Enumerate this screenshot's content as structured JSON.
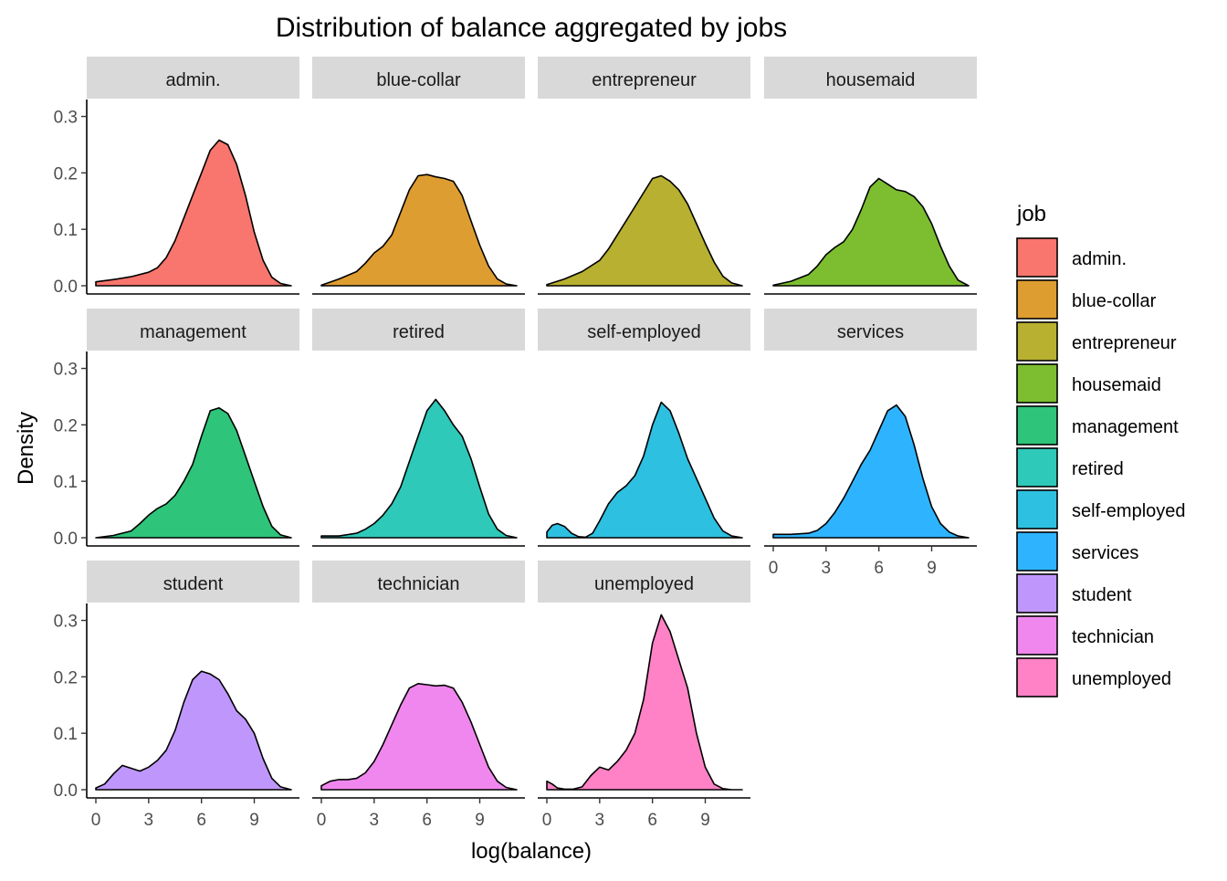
{
  "chart_data": {
    "type": "area",
    "title": "Distribution of balance aggregated by jobs",
    "xlabel": "log(balance)",
    "ylabel": "Density",
    "xlim": [
      0,
      11.1
    ],
    "ylim": [
      0,
      0.33
    ],
    "x_ticks": [
      0,
      3,
      6,
      9
    ],
    "y_ticks": [
      0.0,
      0.1,
      0.2,
      0.3
    ],
    "x_tick_labels": [
      "0",
      "3",
      "6",
      "9"
    ],
    "y_tick_labels": [
      "0.0",
      "0.1",
      "0.2",
      "0.3"
    ],
    "grid": false,
    "legend": {
      "title": "job",
      "position": "right"
    },
    "facets": [
      {
        "name": "admin.",
        "color": "#F8766D",
        "x": [
          0,
          1,
          2,
          3,
          3.5,
          4,
          4.5,
          5,
          5.5,
          6,
          6.5,
          7,
          7.5,
          8,
          8.5,
          9,
          9.5,
          10,
          10.5,
          11.1
        ],
        "y": [
          0.007,
          0.011,
          0.016,
          0.024,
          0.032,
          0.05,
          0.08,
          0.12,
          0.16,
          0.2,
          0.24,
          0.258,
          0.25,
          0.215,
          0.16,
          0.095,
          0.045,
          0.015,
          0.004,
          0.0
        ]
      },
      {
        "name": "blue-collar",
        "color": "#DE9D30",
        "x": [
          0,
          1,
          2,
          2.5,
          3,
          3.5,
          4,
          4.5,
          5,
          5.5,
          6,
          6.5,
          7,
          7.5,
          8,
          8.5,
          9,
          9.5,
          10,
          10.5,
          11.1
        ],
        "y": [
          0.001,
          0.012,
          0.025,
          0.04,
          0.058,
          0.07,
          0.09,
          0.13,
          0.17,
          0.195,
          0.197,
          0.193,
          0.19,
          0.185,
          0.16,
          0.115,
          0.072,
          0.035,
          0.012,
          0.003,
          0.0
        ]
      },
      {
        "name": "entrepreneur",
        "color": "#B7B030",
        "x": [
          0,
          1,
          2,
          3,
          3.5,
          4,
          4.5,
          5,
          5.5,
          6,
          6.5,
          7,
          7.5,
          8,
          8.5,
          9,
          9.5,
          10,
          10.5,
          11.1
        ],
        "y": [
          0.002,
          0.012,
          0.025,
          0.045,
          0.065,
          0.09,
          0.115,
          0.14,
          0.165,
          0.19,
          0.195,
          0.185,
          0.17,
          0.145,
          0.11,
          0.075,
          0.042,
          0.017,
          0.005,
          0.0
        ]
      },
      {
        "name": "housemaid",
        "color": "#7CBE30",
        "x": [
          0,
          1,
          2,
          2.5,
          3,
          3.5,
          4,
          4.5,
          5,
          5.5,
          6,
          6.5,
          7,
          7.5,
          8,
          8.5,
          9,
          9.5,
          10,
          10.5,
          11.1
        ],
        "y": [
          0.001,
          0.008,
          0.02,
          0.035,
          0.055,
          0.068,
          0.078,
          0.1,
          0.135,
          0.175,
          0.19,
          0.18,
          0.17,
          0.167,
          0.158,
          0.14,
          0.11,
          0.07,
          0.035,
          0.01,
          0.0
        ]
      },
      {
        "name": "management",
        "color": "#2EC47A",
        "x": [
          0,
          1,
          2,
          2.5,
          3,
          3.5,
          4,
          4.5,
          5,
          5.5,
          6,
          6.5,
          7,
          7.5,
          8,
          8.5,
          9,
          9.5,
          10,
          10.5,
          11.1
        ],
        "y": [
          0.0,
          0.004,
          0.012,
          0.025,
          0.04,
          0.052,
          0.06,
          0.075,
          0.1,
          0.13,
          0.18,
          0.225,
          0.23,
          0.22,
          0.19,
          0.145,
          0.1,
          0.055,
          0.02,
          0.005,
          0.0
        ]
      },
      {
        "name": "retired",
        "color": "#2EC9B8",
        "x": [
          0,
          1,
          2,
          2.5,
          3,
          3.5,
          4,
          4.5,
          5,
          5.5,
          6,
          6.5,
          7,
          7.5,
          8,
          8.5,
          9,
          9.5,
          10,
          10.5,
          11.1
        ],
        "y": [
          0.003,
          0.003,
          0.008,
          0.015,
          0.025,
          0.04,
          0.06,
          0.09,
          0.135,
          0.18,
          0.225,
          0.245,
          0.225,
          0.2,
          0.18,
          0.14,
          0.09,
          0.042,
          0.015,
          0.004,
          0.0
        ]
      },
      {
        "name": "self-employed",
        "color": "#2EC0E0",
        "x": [
          0,
          0.3,
          0.6,
          1,
          1.4,
          1.8,
          2.2,
          2.6,
          3,
          3.5,
          4,
          4.5,
          5,
          5.5,
          6,
          6.5,
          7,
          7.5,
          8,
          8.5,
          9,
          9.5,
          10,
          10.5,
          11.1
        ],
        "y": [
          0.01,
          0.022,
          0.025,
          0.02,
          0.008,
          0.002,
          0.001,
          0.008,
          0.03,
          0.06,
          0.08,
          0.092,
          0.11,
          0.145,
          0.2,
          0.24,
          0.225,
          0.185,
          0.14,
          0.105,
          0.07,
          0.035,
          0.012,
          0.003,
          0.0
        ]
      },
      {
        "name": "services",
        "color": "#2EB4FF",
        "x": [
          0,
          1,
          2,
          2.5,
          3,
          3.5,
          4,
          4.5,
          5,
          5.5,
          6,
          6.5,
          7,
          7.5,
          8,
          8.5,
          9,
          9.5,
          10,
          10.5,
          11.1
        ],
        "y": [
          0.006,
          0.006,
          0.008,
          0.013,
          0.025,
          0.045,
          0.07,
          0.1,
          0.13,
          0.155,
          0.19,
          0.225,
          0.235,
          0.215,
          0.165,
          0.105,
          0.055,
          0.025,
          0.01,
          0.003,
          0.0
        ]
      },
      {
        "name": "student",
        "color": "#BF97FC",
        "x": [
          0,
          0.5,
          1,
          1.5,
          2,
          2.5,
          3,
          3.5,
          4,
          4.5,
          5,
          5.5,
          6,
          6.5,
          7,
          7.5,
          8,
          8.5,
          9,
          9.5,
          10,
          10.5,
          11.1
        ],
        "y": [
          0.003,
          0.01,
          0.028,
          0.043,
          0.038,
          0.033,
          0.04,
          0.052,
          0.07,
          0.105,
          0.155,
          0.195,
          0.21,
          0.205,
          0.195,
          0.17,
          0.14,
          0.125,
          0.1,
          0.055,
          0.02,
          0.005,
          0.0
        ]
      },
      {
        "name": "technician",
        "color": "#F087EE",
        "x": [
          0,
          0.5,
          1,
          1.5,
          2,
          2.5,
          3,
          3.5,
          4,
          4.5,
          5,
          5.5,
          6,
          6.5,
          7,
          7.5,
          8,
          8.5,
          9,
          9.5,
          10,
          10.5,
          11.1
        ],
        "y": [
          0.007,
          0.015,
          0.018,
          0.018,
          0.02,
          0.03,
          0.05,
          0.08,
          0.115,
          0.15,
          0.18,
          0.188,
          0.186,
          0.184,
          0.185,
          0.18,
          0.155,
          0.12,
          0.08,
          0.04,
          0.015,
          0.004,
          0.0
        ]
      },
      {
        "name": "unemployed",
        "color": "#FE82C5",
        "x": [
          0,
          0.3,
          0.6,
          1,
          1.5,
          2,
          2.5,
          3,
          3.5,
          4,
          4.5,
          5,
          5.5,
          6,
          6.5,
          7,
          7.5,
          8,
          8.5,
          9,
          9.5,
          10,
          10.5,
          11.1
        ],
        "y": [
          0.015,
          0.01,
          0.003,
          0.001,
          0.001,
          0.005,
          0.025,
          0.04,
          0.035,
          0.05,
          0.07,
          0.1,
          0.16,
          0.26,
          0.31,
          0.28,
          0.23,
          0.18,
          0.1,
          0.04,
          0.01,
          0.002,
          0.0,
          0.0
        ]
      }
    ]
  }
}
